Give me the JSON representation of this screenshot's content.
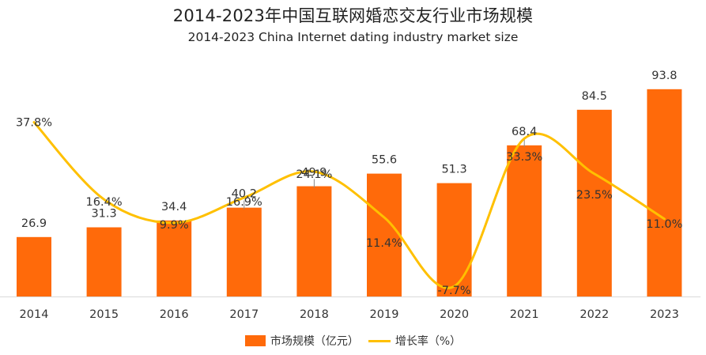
{
  "chart_data": {
    "type": "bar",
    "title": "2014-2023年中国互联网婚恋交友行业市场规模",
    "subtitle": "2014-2023 China Internet dating industry market size",
    "categories": [
      "2014",
      "2015",
      "2016",
      "2017",
      "2018",
      "2019",
      "2020",
      "2021",
      "2022",
      "2023"
    ],
    "series": [
      {
        "name": "市场规模（亿元）",
        "type": "bar",
        "color": "#ff6a0a",
        "values": [
          26.9,
          31.3,
          34.4,
          40.2,
          49.9,
          55.6,
          51.3,
          68.4,
          84.5,
          93.8
        ],
        "labels": [
          "26.9",
          "31.3",
          "34.4",
          "40.2",
          "49.9",
          "55.6",
          "51.3",
          "68.4",
          "84.5",
          "93.8"
        ]
      },
      {
        "name": "增长率（%）",
        "type": "line",
        "smooth": true,
        "color": "#ffc000",
        "values": [
          37.8,
          16.4,
          9.9,
          16.9,
          24.1,
          11.4,
          -7.7,
          33.3,
          23.5,
          11.0
        ],
        "labels": [
          "37.8%",
          "16.4%",
          "9.9%",
          "16.9%",
          "24.1%",
          "11.4%",
          "-7.7%",
          "33.3%",
          "23.5%",
          "11.0%"
        ]
      }
    ],
    "xlabel": "",
    "ylabel": "",
    "ylim": [
      0,
      100
    ],
    "y2lim": [
      -10,
      40
    ],
    "grid": false,
    "legend_position": "bottom-center"
  }
}
